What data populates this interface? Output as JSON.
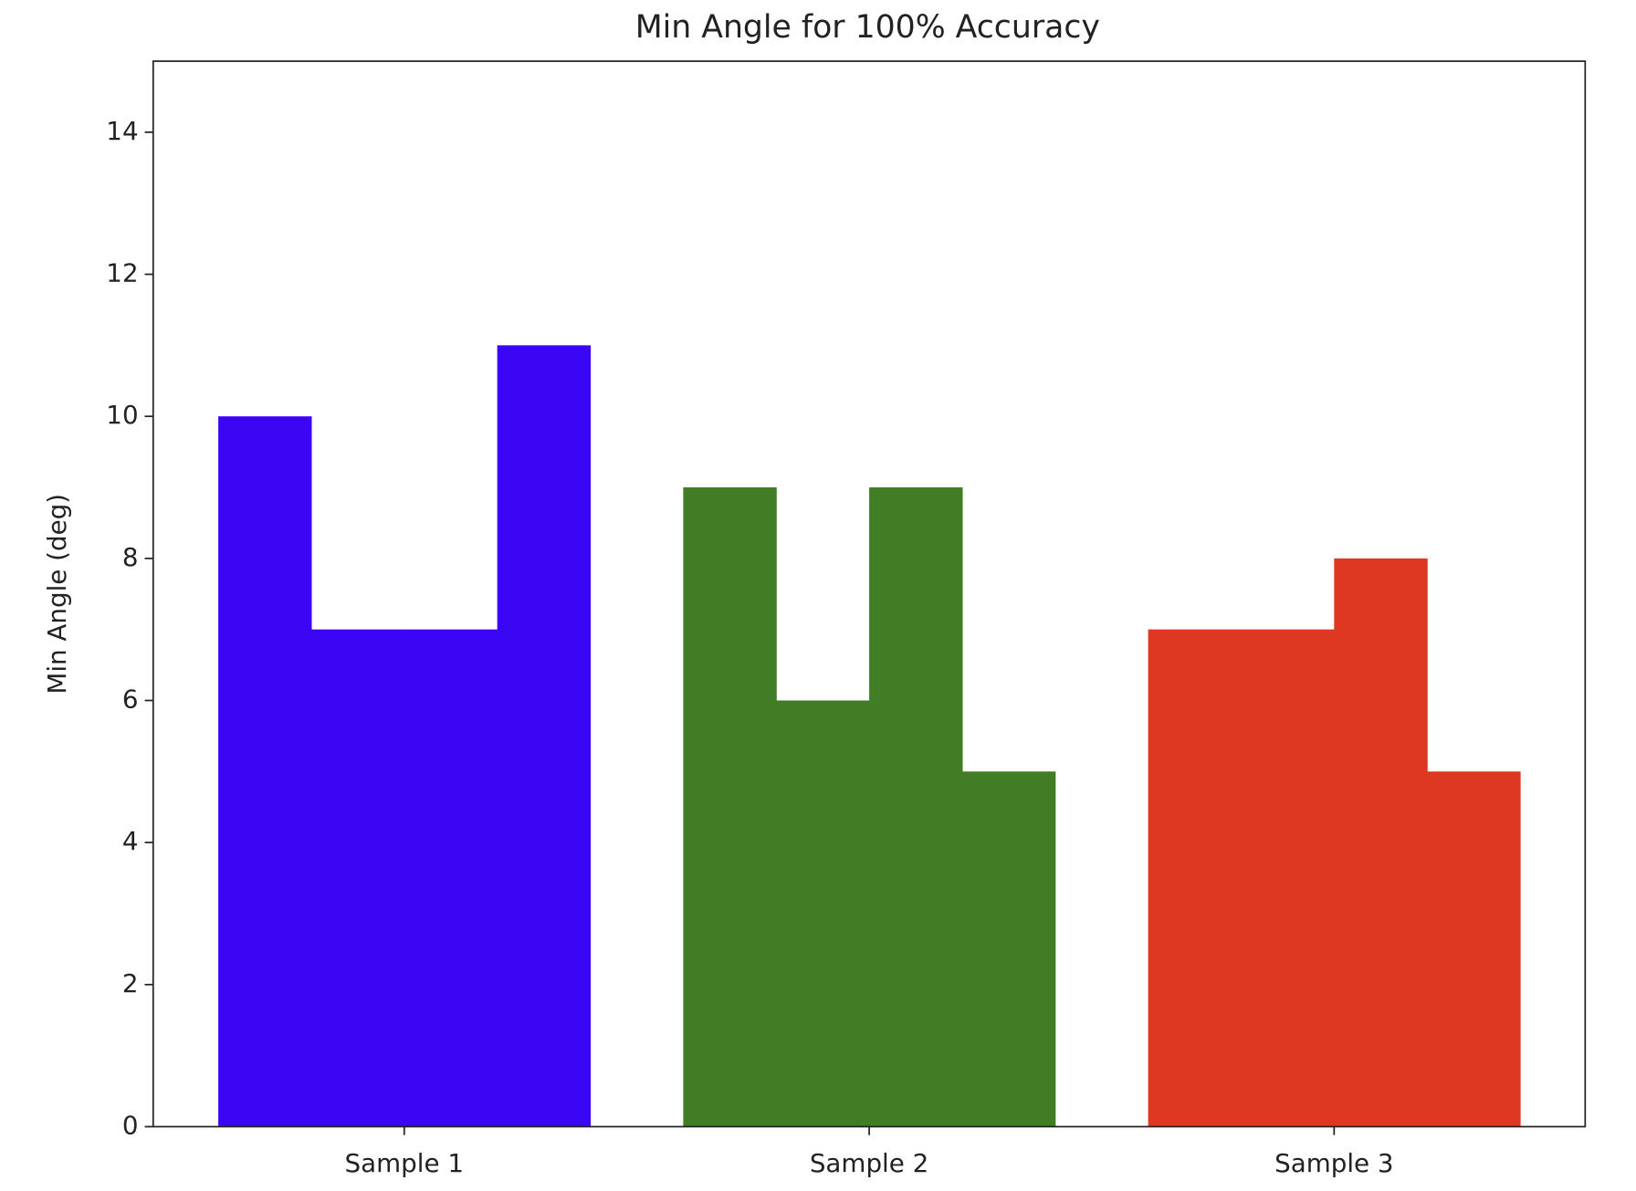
{
  "chart_data": {
    "type": "grouped-bar",
    "title": "Min Angle for 100% Accuracy",
    "y_label": "Min Angle (deg)",
    "categories": [
      "Sample 1",
      "Sample 2",
      "Sample 3"
    ],
    "values": [
      [
        10,
        7,
        7,
        11
      ],
      [
        9,
        6,
        9,
        5
      ],
      [
        7,
        7,
        8,
        5
      ]
    ],
    "colors": [
      "#3a06f4",
      "#417d24",
      "#de3722"
    ],
    "ylim": [
      0,
      15
    ],
    "yticks": [
      0,
      2,
      4,
      6,
      8,
      10,
      12,
      14
    ]
  }
}
